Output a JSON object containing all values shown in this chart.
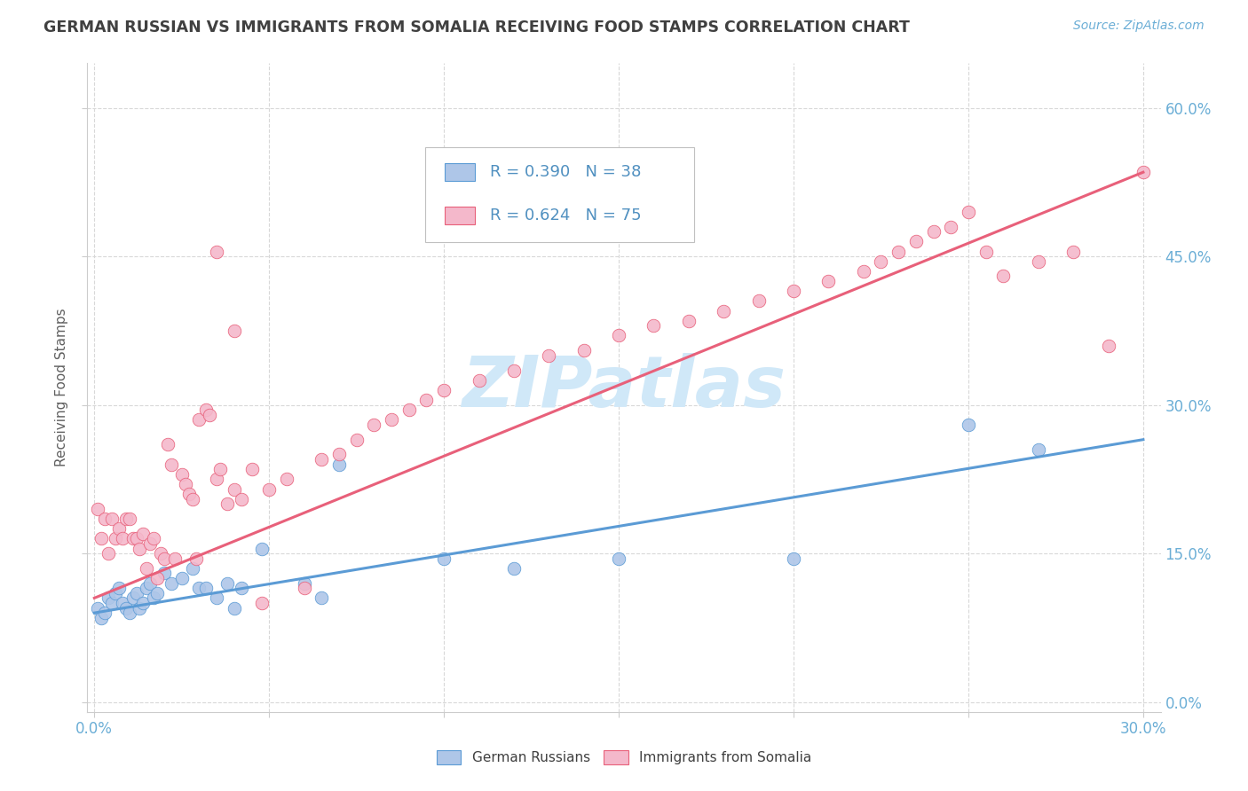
{
  "title": "GERMAN RUSSIAN VS IMMIGRANTS FROM SOMALIA RECEIVING FOOD STAMPS CORRELATION CHART",
  "source": "Source: ZipAtlas.com",
  "ylabel": "Receiving Food Stamps",
  "ytick_values": [
    0.0,
    0.15,
    0.3,
    0.45,
    0.6
  ],
  "xtick_values": [
    0.0,
    0.05,
    0.1,
    0.15,
    0.2,
    0.25,
    0.3
  ],
  "xlim": [
    -0.002,
    0.305
  ],
  "ylim": [
    -0.01,
    0.645
  ],
  "blue_R": 0.39,
  "blue_N": 38,
  "pink_R": 0.624,
  "pink_N": 75,
  "blue_color": "#aec6e8",
  "pink_color": "#f4b8cb",
  "blue_line_color": "#5b9bd5",
  "pink_line_color": "#e8607a",
  "watermark_color": "#d0e8f8",
  "background_color": "#ffffff",
  "grid_color": "#d8d8d8",
  "title_color": "#404040",
  "axis_label_color": "#6baed6",
  "legend_text_color": "#5090c0",
  "blue_scatter_x": [
    0.001,
    0.002,
    0.003,
    0.004,
    0.005,
    0.006,
    0.007,
    0.008,
    0.009,
    0.01,
    0.011,
    0.012,
    0.013,
    0.014,
    0.015,
    0.016,
    0.017,
    0.018,
    0.02,
    0.022,
    0.025,
    0.028,
    0.03,
    0.032,
    0.035,
    0.038,
    0.04,
    0.042,
    0.048,
    0.06,
    0.065,
    0.07,
    0.1,
    0.12,
    0.15,
    0.2,
    0.25,
    0.27
  ],
  "blue_scatter_y": [
    0.095,
    0.085,
    0.09,
    0.105,
    0.1,
    0.11,
    0.115,
    0.1,
    0.095,
    0.09,
    0.105,
    0.11,
    0.095,
    0.1,
    0.115,
    0.12,
    0.105,
    0.11,
    0.13,
    0.12,
    0.125,
    0.135,
    0.115,
    0.115,
    0.105,
    0.12,
    0.095,
    0.115,
    0.155,
    0.12,
    0.105,
    0.24,
    0.145,
    0.135,
    0.145,
    0.145,
    0.28,
    0.255
  ],
  "pink_scatter_x": [
    0.001,
    0.002,
    0.003,
    0.004,
    0.005,
    0.006,
    0.007,
    0.008,
    0.009,
    0.01,
    0.011,
    0.012,
    0.013,
    0.014,
    0.015,
    0.016,
    0.017,
    0.018,
    0.019,
    0.02,
    0.021,
    0.022,
    0.023,
    0.025,
    0.026,
    0.027,
    0.028,
    0.029,
    0.03,
    0.032,
    0.033,
    0.035,
    0.036,
    0.038,
    0.04,
    0.042,
    0.045,
    0.048,
    0.05,
    0.055,
    0.06,
    0.065,
    0.07,
    0.075,
    0.08,
    0.085,
    0.09,
    0.095,
    0.1,
    0.11,
    0.12,
    0.13,
    0.14,
    0.15,
    0.16,
    0.17,
    0.18,
    0.19,
    0.2,
    0.21,
    0.22,
    0.225,
    0.23,
    0.235,
    0.24,
    0.245,
    0.25,
    0.255,
    0.26,
    0.27,
    0.28,
    0.29,
    0.3,
    0.035,
    0.04
  ],
  "pink_scatter_y": [
    0.195,
    0.165,
    0.185,
    0.15,
    0.185,
    0.165,
    0.175,
    0.165,
    0.185,
    0.185,
    0.165,
    0.165,
    0.155,
    0.17,
    0.135,
    0.16,
    0.165,
    0.125,
    0.15,
    0.145,
    0.26,
    0.24,
    0.145,
    0.23,
    0.22,
    0.21,
    0.205,
    0.145,
    0.285,
    0.295,
    0.29,
    0.225,
    0.235,
    0.2,
    0.215,
    0.205,
    0.235,
    0.1,
    0.215,
    0.225,
    0.115,
    0.245,
    0.25,
    0.265,
    0.28,
    0.285,
    0.295,
    0.305,
    0.315,
    0.325,
    0.335,
    0.35,
    0.355,
    0.37,
    0.38,
    0.385,
    0.395,
    0.405,
    0.415,
    0.425,
    0.435,
    0.445,
    0.455,
    0.465,
    0.475,
    0.48,
    0.495,
    0.455,
    0.43,
    0.445,
    0.455,
    0.36,
    0.535,
    0.455,
    0.375
  ],
  "blue_line": {
    "x0": 0.0,
    "y0": 0.09,
    "x1": 0.3,
    "y1": 0.265
  },
  "pink_line": {
    "x0": 0.0,
    "y0": 0.105,
    "x1": 0.3,
    "y1": 0.535
  }
}
